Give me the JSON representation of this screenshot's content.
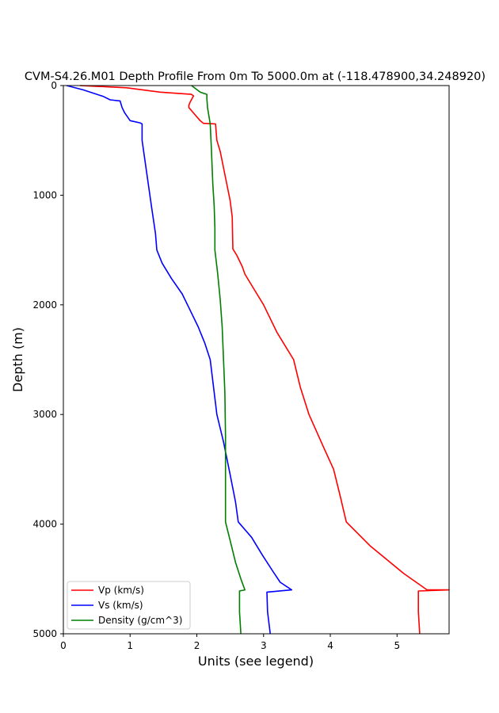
{
  "chart_data": {
    "type": "line",
    "title": "CVM-S4.26.M01 Depth Profile From 0m To 5000.0m at (-118.478900,34.248920)",
    "xlabel": "Units (see legend)",
    "ylabel": "Depth (m)",
    "xlim": [
      0,
      5.78
    ],
    "ylim": [
      0,
      5000
    ],
    "y_inverted": true,
    "x_ticks": [
      "0",
      "1",
      "2",
      "3",
      "4",
      "5"
    ],
    "y_ticks": [
      "0",
      "1000",
      "2000",
      "3000",
      "4000",
      "5000"
    ],
    "grid": false,
    "legend_position": "lower-left",
    "series": [
      {
        "name": "Vp (km/s)",
        "color": "#ff0000",
        "points": [
          [
            0.25,
            0
          ],
          [
            0.95,
            20
          ],
          [
            1.45,
            60
          ],
          [
            1.92,
            80
          ],
          [
            1.95,
            95
          ],
          [
            1.9,
            150
          ],
          [
            1.88,
            180
          ],
          [
            1.88,
            200
          ],
          [
            1.95,
            250
          ],
          [
            2.05,
            320
          ],
          [
            2.1,
            345
          ],
          [
            2.28,
            350
          ],
          [
            2.3,
            500
          ],
          [
            2.35,
            600
          ],
          [
            2.45,
            900
          ],
          [
            2.5,
            1050
          ],
          [
            2.53,
            1200
          ],
          [
            2.54,
            1490
          ],
          [
            2.6,
            1550
          ],
          [
            2.68,
            1650
          ],
          [
            2.72,
            1720
          ],
          [
            2.85,
            1850
          ],
          [
            3.0,
            2000
          ],
          [
            3.2,
            2250
          ],
          [
            3.45,
            2500
          ],
          [
            3.55,
            2750
          ],
          [
            3.68,
            3000
          ],
          [
            3.9,
            3300
          ],
          [
            4.05,
            3500
          ],
          [
            4.15,
            3750
          ],
          [
            4.24,
            3980
          ],
          [
            4.6,
            4200
          ],
          [
            5.1,
            4450
          ],
          [
            5.45,
            4600
          ],
          [
            5.78,
            4600
          ],
          [
            5.32,
            4610
          ],
          [
            5.32,
            4800
          ],
          [
            5.34,
            5000
          ]
        ]
      },
      {
        "name": "Vs (km/s)",
        "color": "#0000ff",
        "points": [
          [
            0.05,
            0
          ],
          [
            0.3,
            40
          ],
          [
            0.6,
            100
          ],
          [
            0.7,
            130
          ],
          [
            0.85,
            140
          ],
          [
            0.88,
            200
          ],
          [
            0.92,
            250
          ],
          [
            1.0,
            320
          ],
          [
            1.15,
            340
          ],
          [
            1.18,
            350
          ],
          [
            1.18,
            500
          ],
          [
            1.25,
            800
          ],
          [
            1.32,
            1100
          ],
          [
            1.38,
            1350
          ],
          [
            1.4,
            1500
          ],
          [
            1.48,
            1620
          ],
          [
            1.62,
            1760
          ],
          [
            1.78,
            1900
          ],
          [
            1.9,
            2050
          ],
          [
            2.02,
            2200
          ],
          [
            2.12,
            2350
          ],
          [
            2.2,
            2500
          ],
          [
            2.25,
            2750
          ],
          [
            2.3,
            3000
          ],
          [
            2.4,
            3250
          ],
          [
            2.5,
            3550
          ],
          [
            2.58,
            3800
          ],
          [
            2.62,
            3980
          ],
          [
            2.72,
            4050
          ],
          [
            2.82,
            4120
          ],
          [
            2.98,
            4280
          ],
          [
            3.15,
            4440
          ],
          [
            3.25,
            4530
          ],
          [
            3.42,
            4600
          ],
          [
            3.05,
            4620
          ],
          [
            3.06,
            4800
          ],
          [
            3.1,
            5000
          ]
        ]
      },
      {
        "name": "Density (g/cm^3)",
        "color": "#008000",
        "points": [
          [
            1.92,
            0
          ],
          [
            2.05,
            60
          ],
          [
            2.15,
            80
          ],
          [
            2.15,
            120
          ],
          [
            2.16,
            200
          ],
          [
            2.2,
            350
          ],
          [
            2.22,
            600
          ],
          [
            2.24,
            900
          ],
          [
            2.26,
            1100
          ],
          [
            2.27,
            1300
          ],
          [
            2.27,
            1500
          ],
          [
            2.31,
            1700
          ],
          [
            2.35,
            1950
          ],
          [
            2.38,
            2200
          ],
          [
            2.4,
            2500
          ],
          [
            2.42,
            2800
          ],
          [
            2.43,
            3200
          ],
          [
            2.43,
            3600
          ],
          [
            2.43,
            3980
          ],
          [
            2.5,
            4150
          ],
          [
            2.58,
            4350
          ],
          [
            2.66,
            4500
          ],
          [
            2.72,
            4600
          ],
          [
            2.64,
            4610
          ],
          [
            2.64,
            4800
          ],
          [
            2.66,
            5000
          ]
        ]
      }
    ]
  }
}
